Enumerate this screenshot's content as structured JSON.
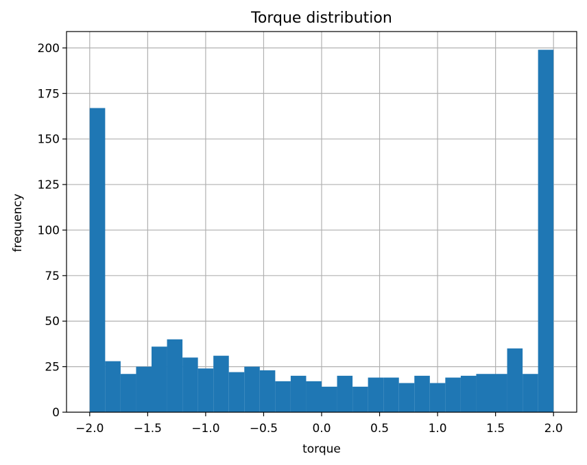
{
  "chart_data": {
    "type": "bar",
    "title": "Torque distribution",
    "xlabel": "torque",
    "ylabel": "frequency",
    "xlim": [
      -2.2,
      2.2
    ],
    "ylim": [
      0,
      209
    ],
    "grid": true,
    "bar_color": "#1f77b4",
    "grid_color": "#b0b0b0",
    "bins": {
      "start": -2.0,
      "end": 2.0,
      "count": 30,
      "values": [
        167,
        28,
        21,
        25,
        36,
        40,
        30,
        24,
        31,
        22,
        25,
        23,
        17,
        20,
        17,
        14,
        20,
        14,
        19,
        19,
        16,
        20,
        16,
        19,
        20,
        21,
        21,
        35,
        21,
        199
      ]
    },
    "xticks": [
      {
        "value": -2.0,
        "label": "−2.0"
      },
      {
        "value": -1.5,
        "label": "−1.5"
      },
      {
        "value": -1.0,
        "label": "−1.0"
      },
      {
        "value": -0.5,
        "label": "−0.5"
      },
      {
        "value": 0.0,
        "label": "0.0"
      },
      {
        "value": 0.5,
        "label": "0.5"
      },
      {
        "value": 1.0,
        "label": "1.0"
      },
      {
        "value": 1.5,
        "label": "1.5"
      },
      {
        "value": 2.0,
        "label": "2.0"
      }
    ],
    "yticks": [
      {
        "value": 0,
        "label": "0"
      },
      {
        "value": 25,
        "label": "25"
      },
      {
        "value": 50,
        "label": "50"
      },
      {
        "value": 75,
        "label": "75"
      },
      {
        "value": 100,
        "label": "100"
      },
      {
        "value": 125,
        "label": "125"
      },
      {
        "value": 150,
        "label": "150"
      },
      {
        "value": 175,
        "label": "175"
      },
      {
        "value": 200,
        "label": "200"
      }
    ]
  }
}
